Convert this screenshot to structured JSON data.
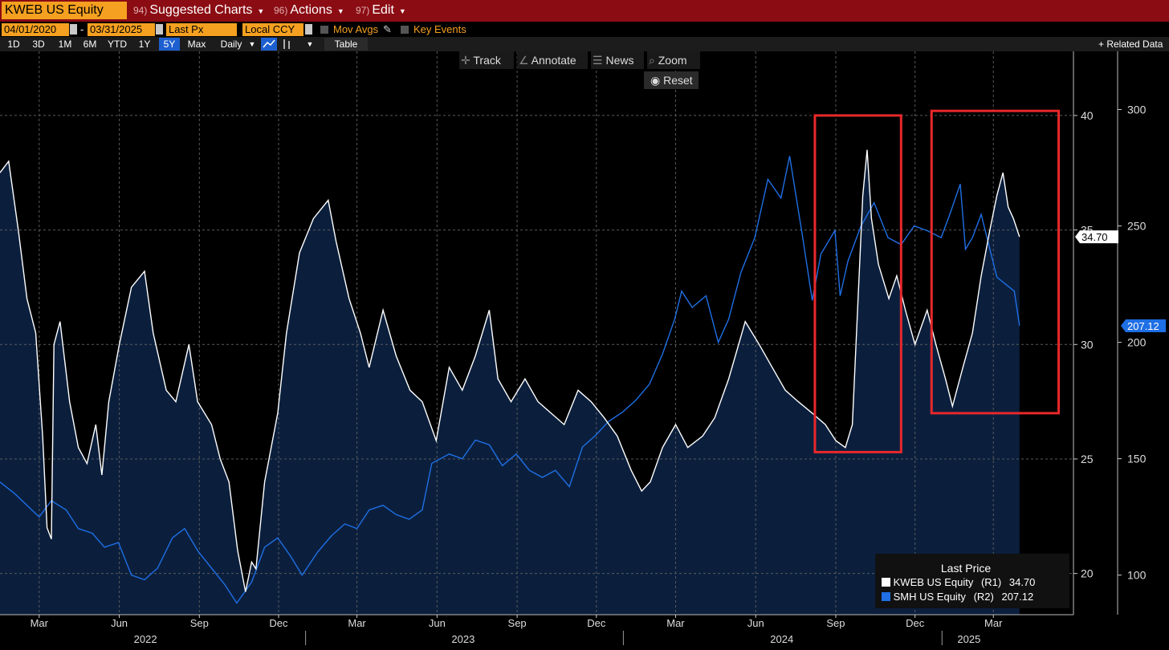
{
  "toolbar": {
    "ticker": "KWEB US Equity",
    "menus": [
      {
        "num": "94)",
        "label": "Suggested Charts"
      },
      {
        "num": "96)",
        "label": "Actions"
      },
      {
        "num": "97)",
        "label": "Edit"
      }
    ]
  },
  "settings": {
    "start_date": "04/01/2020",
    "end_date": "03/31/2025",
    "date_sep": "-",
    "field": "Last Px",
    "currency": "Local CCY",
    "mov_avgs": "Mov Avgs",
    "key_events": "Key Events"
  },
  "ranges": {
    "items": [
      "1D",
      "3D",
      "1M",
      "6M",
      "YTD",
      "1Y",
      "5Y",
      "Max"
    ],
    "selected": "5Y",
    "frequency": "Daily",
    "table": "Table",
    "related": "+ Related Data"
  },
  "tools": {
    "track": "Track",
    "annotate": "Annotate",
    "news": "News",
    "zoom": "Zoom",
    "reset": "Reset"
  },
  "legend": {
    "title": "Last Price",
    "items": [
      {
        "name": "KWEB US Equity",
        "axis": "(R1)",
        "value": "34.70",
        "color": "#ffffff"
      },
      {
        "name": "SMH US Equity",
        "axis": "(R2)",
        "value": "207.12",
        "color": "#1f6fe5"
      }
    ]
  },
  "colors": {
    "kweb": "#ffffff",
    "smh": "#1f6fe5",
    "fill": "#0b1f3d",
    "highlight_box": "#e8282b",
    "kweb_last_badge": "#ffffff",
    "smh_last_badge": "#1f6fe5"
  },
  "chart_data": {
    "type": "line",
    "x_unit": "date",
    "x_ticks": [
      {
        "date": "2022-03-01",
        "label": "Mar"
      },
      {
        "date": "2022-06-01",
        "label": "Jun"
      },
      {
        "date": "2022-09-01",
        "label": "Sep"
      },
      {
        "date": "2022-12-01",
        "label": "Dec"
      },
      {
        "date": "2023-03-01",
        "label": "Mar"
      },
      {
        "date": "2023-06-01",
        "label": "Jun"
      },
      {
        "date": "2023-09-01",
        "label": "Sep"
      },
      {
        "date": "2023-12-01",
        "label": "Dec"
      },
      {
        "date": "2024-03-01",
        "label": "Mar"
      },
      {
        "date": "2024-06-01",
        "label": "Jun"
      },
      {
        "date": "2024-09-01",
        "label": "Sep"
      },
      {
        "date": "2024-12-01",
        "label": "Dec"
      },
      {
        "date": "2025-03-01",
        "label": "Mar"
      }
    ],
    "year_labels": [
      {
        "date": "2022-07-01",
        "label": "2022"
      },
      {
        "date": "2023-07-01",
        "label": "2023"
      },
      {
        "date": "2024-07-01",
        "label": "2024"
      },
      {
        "date": "2025-02-01",
        "label": "2025"
      }
    ],
    "x_range": [
      "2022-01-15",
      "2025-06-01"
    ],
    "axes": {
      "r1": {
        "series": "KWEB US Equity",
        "range": [
          18.2,
          42.8
        ],
        "ticks": [
          20,
          25,
          30,
          35,
          40
        ]
      },
      "r2": {
        "series": "SMH US Equity",
        "range": [
          83,
          325
        ],
        "ticks": [
          100,
          150,
          200,
          250,
          300
        ]
      }
    },
    "grid": true,
    "legend_position": "bottom-right",
    "series": [
      {
        "name": "KWEB US Equity",
        "axis": "r1",
        "last": "34.70",
        "points": [
          [
            "2022-01-15",
            37.5
          ],
          [
            "2022-01-25",
            38.0
          ],
          [
            "2022-02-05",
            35.0
          ],
          [
            "2022-02-15",
            32.0
          ],
          [
            "2022-02-25",
            30.5
          ],
          [
            "2022-03-05",
            26.0
          ],
          [
            "2022-03-10",
            22.0
          ],
          [
            "2022-03-15",
            21.5
          ],
          [
            "2022-03-18",
            30.0
          ],
          [
            "2022-03-25",
            31.0
          ],
          [
            "2022-04-05",
            27.5
          ],
          [
            "2022-04-15",
            25.5
          ],
          [
            "2022-04-25",
            24.8
          ],
          [
            "2022-05-05",
            26.5
          ],
          [
            "2022-05-12",
            24.3
          ],
          [
            "2022-05-20",
            27.5
          ],
          [
            "2022-06-01",
            30.0
          ],
          [
            "2022-06-15",
            32.5
          ],
          [
            "2022-06-30",
            33.2
          ],
          [
            "2022-07-10",
            30.5
          ],
          [
            "2022-07-25",
            28.0
          ],
          [
            "2022-08-05",
            27.5
          ],
          [
            "2022-08-20",
            30.0
          ],
          [
            "2022-08-30",
            27.5
          ],
          [
            "2022-09-15",
            26.5
          ],
          [
            "2022-09-25",
            25.0
          ],
          [
            "2022-10-05",
            24.0
          ],
          [
            "2022-10-15",
            21.0
          ],
          [
            "2022-10-24",
            19.2
          ],
          [
            "2022-10-31",
            20.5
          ],
          [
            "2022-11-05",
            20.2
          ],
          [
            "2022-11-15",
            24.0
          ],
          [
            "2022-11-30",
            27.0
          ],
          [
            "2022-12-10",
            30.5
          ],
          [
            "2022-12-25",
            34.0
          ],
          [
            "2023-01-10",
            35.5
          ],
          [
            "2023-01-27",
            36.3
          ],
          [
            "2023-02-05",
            34.5
          ],
          [
            "2023-02-20",
            32.0
          ],
          [
            "2023-03-05",
            30.5
          ],
          [
            "2023-03-15",
            29.0
          ],
          [
            "2023-03-31",
            31.5
          ],
          [
            "2023-04-15",
            29.5
          ],
          [
            "2023-05-01",
            28.0
          ],
          [
            "2023-05-15",
            27.5
          ],
          [
            "2023-05-31",
            25.8
          ],
          [
            "2023-06-15",
            29.0
          ],
          [
            "2023-06-30",
            28.0
          ],
          [
            "2023-07-15",
            29.5
          ],
          [
            "2023-07-31",
            31.5
          ],
          [
            "2023-08-10",
            28.5
          ],
          [
            "2023-08-25",
            27.5
          ],
          [
            "2023-09-10",
            28.5
          ],
          [
            "2023-09-25",
            27.5
          ],
          [
            "2023-10-10",
            27.0
          ],
          [
            "2023-10-25",
            26.5
          ],
          [
            "2023-11-10",
            28.0
          ],
          [
            "2023-11-25",
            27.5
          ],
          [
            "2023-12-10",
            26.8
          ],
          [
            "2023-12-25",
            26.0
          ],
          [
            "2024-01-10",
            24.5
          ],
          [
            "2024-01-22",
            23.6
          ],
          [
            "2024-02-01",
            24.0
          ],
          [
            "2024-02-15",
            25.5
          ],
          [
            "2024-03-01",
            26.5
          ],
          [
            "2024-03-15",
            25.5
          ],
          [
            "2024-04-01",
            26.0
          ],
          [
            "2024-04-15",
            26.8
          ],
          [
            "2024-05-01",
            28.5
          ],
          [
            "2024-05-20",
            31.0
          ],
          [
            "2024-06-05",
            30.0
          ],
          [
            "2024-06-20",
            29.0
          ],
          [
            "2024-07-05",
            28.0
          ],
          [
            "2024-07-20",
            27.5
          ],
          [
            "2024-08-05",
            27.0
          ],
          [
            "2024-08-20",
            26.5
          ],
          [
            "2024-09-01",
            25.8
          ],
          [
            "2024-09-12",
            25.5
          ],
          [
            "2024-09-20",
            26.5
          ],
          [
            "2024-09-26",
            31.5
          ],
          [
            "2024-10-02",
            36.5
          ],
          [
            "2024-10-07",
            38.5
          ],
          [
            "2024-10-12",
            35.5
          ],
          [
            "2024-10-20",
            33.5
          ],
          [
            "2024-11-01",
            32.0
          ],
          [
            "2024-11-10",
            33.0
          ],
          [
            "2024-11-20",
            31.5
          ],
          [
            "2024-12-01",
            30.0
          ],
          [
            "2024-12-15",
            31.5
          ],
          [
            "2024-12-25",
            30.0
          ],
          [
            "2025-01-05",
            28.5
          ],
          [
            "2025-01-13",
            27.3
          ],
          [
            "2025-01-25",
            29.0
          ],
          [
            "2025-02-05",
            30.5
          ],
          [
            "2025-02-15",
            33.0
          ],
          [
            "2025-02-25",
            35.0
          ],
          [
            "2025-03-05",
            36.5
          ],
          [
            "2025-03-12",
            37.5
          ],
          [
            "2025-03-18",
            36.0
          ],
          [
            "2025-03-24",
            35.5
          ],
          [
            "2025-03-31",
            34.7
          ]
        ]
      },
      {
        "name": "SMH US Equity",
        "axis": "r2",
        "last": "207.12",
        "points": [
          [
            "2022-01-15",
            140.0
          ],
          [
            "2022-02-01",
            135.0
          ],
          [
            "2022-02-15",
            130.0
          ],
          [
            "2022-03-01",
            125.0
          ],
          [
            "2022-03-15",
            132.0
          ],
          [
            "2022-04-01",
            128.0
          ],
          [
            "2022-04-15",
            120.0
          ],
          [
            "2022-05-01",
            118.0
          ],
          [
            "2022-05-15",
            112.0
          ],
          [
            "2022-05-31",
            114.0
          ],
          [
            "2022-06-15",
            100.0
          ],
          [
            "2022-06-30",
            98.0
          ],
          [
            "2022-07-15",
            103.0
          ],
          [
            "2022-08-01",
            116.0
          ],
          [
            "2022-08-15",
            120.0
          ],
          [
            "2022-08-31",
            110.0
          ],
          [
            "2022-09-15",
            103.0
          ],
          [
            "2022-09-30",
            96.0
          ],
          [
            "2022-10-14",
            88.0
          ],
          [
            "2022-10-31",
            97.0
          ],
          [
            "2022-11-15",
            112.0
          ],
          [
            "2022-11-30",
            116.0
          ],
          [
            "2022-12-15",
            108.0
          ],
          [
            "2022-12-28",
            100.0
          ],
          [
            "2023-01-15",
            110.0
          ],
          [
            "2023-01-31",
            117.0
          ],
          [
            "2023-02-15",
            122.0
          ],
          [
            "2023-03-01",
            120.0
          ],
          [
            "2023-03-15",
            128.0
          ],
          [
            "2023-03-31",
            130.0
          ],
          [
            "2023-04-15",
            126.0
          ],
          [
            "2023-04-30",
            124.0
          ],
          [
            "2023-05-15",
            128.0
          ],
          [
            "2023-05-26",
            148.0
          ],
          [
            "2023-06-15",
            152.0
          ],
          [
            "2023-06-30",
            150.0
          ],
          [
            "2023-07-15",
            158.0
          ],
          [
            "2023-07-31",
            156.0
          ],
          [
            "2023-08-15",
            147.0
          ],
          [
            "2023-08-31",
            152.0
          ],
          [
            "2023-09-15",
            145.0
          ],
          [
            "2023-09-30",
            142.0
          ],
          [
            "2023-10-15",
            145.0
          ],
          [
            "2023-10-31",
            138.0
          ],
          [
            "2023-11-15",
            155.0
          ],
          [
            "2023-11-30",
            160.0
          ],
          [
            "2023-12-15",
            166.0
          ],
          [
            "2023-12-31",
            170.0
          ],
          [
            "2024-01-15",
            175.0
          ],
          [
            "2024-01-31",
            182.0
          ],
          [
            "2024-02-15",
            195.0
          ],
          [
            "2024-02-29",
            210.0
          ],
          [
            "2024-03-08",
            222.0
          ],
          [
            "2024-03-20",
            215.0
          ],
          [
            "2024-04-05",
            220.0
          ],
          [
            "2024-04-19",
            200.0
          ],
          [
            "2024-05-01",
            210.0
          ],
          [
            "2024-05-15",
            230.0
          ],
          [
            "2024-05-31",
            245.0
          ],
          [
            "2024-06-15",
            270.0
          ],
          [
            "2024-06-30",
            262.0
          ],
          [
            "2024-07-10",
            280.0
          ],
          [
            "2024-07-25",
            245.0
          ],
          [
            "2024-08-05",
            218.0
          ],
          [
            "2024-08-15",
            238.0
          ],
          [
            "2024-08-31",
            248.0
          ],
          [
            "2024-09-06",
            220.0
          ],
          [
            "2024-09-15",
            235.0
          ],
          [
            "2024-09-30",
            250.0
          ],
          [
            "2024-10-15",
            260.0
          ],
          [
            "2024-10-31",
            245.0
          ],
          [
            "2024-11-15",
            242.0
          ],
          [
            "2024-11-30",
            250.0
          ],
          [
            "2024-12-15",
            248.0
          ],
          [
            "2024-12-31",
            245.0
          ],
          [
            "2025-01-10",
            255.0
          ],
          [
            "2025-01-22",
            268.0
          ],
          [
            "2025-01-28",
            240.0
          ],
          [
            "2025-02-05",
            245.0
          ],
          [
            "2025-02-15",
            255.0
          ],
          [
            "2025-02-25",
            240.0
          ],
          [
            "2025-03-05",
            228.0
          ],
          [
            "2025-03-15",
            225.0
          ],
          [
            "2025-03-25",
            222.0
          ],
          [
            "2025-03-31",
            207.12
          ]
        ]
      }
    ],
    "highlight_boxes": [
      {
        "x_start": "2024-08-08",
        "x_end": "2024-11-15",
        "r1_top": 40.0,
        "r1_bottom": 25.3
      },
      {
        "x_start": "2024-12-20",
        "x_end": "2025-05-15",
        "r1_top": 40.2,
        "r1_bottom": 27.0
      }
    ]
  }
}
